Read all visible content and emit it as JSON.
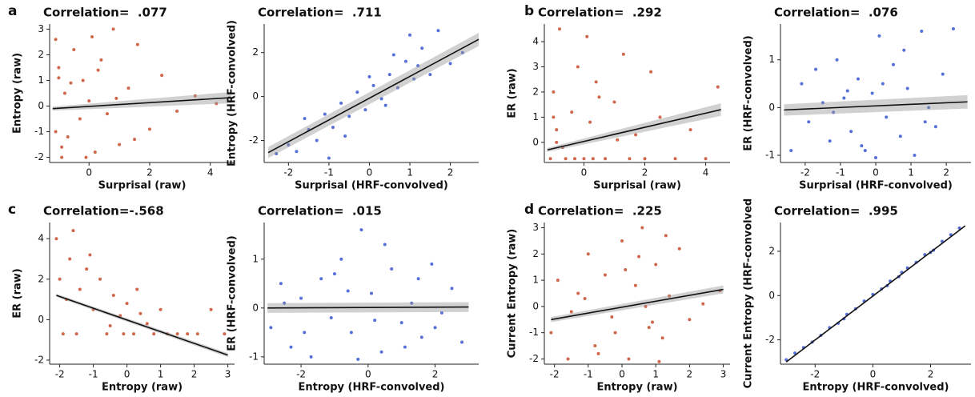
{
  "chart_data": [
    {
      "type": "scatter",
      "panel_label": "a",
      "title": "Correlation=  .077",
      "xlabel": "Surprisal (raw)",
      "ylabel": "Entropy (raw)",
      "color": "#d0674c",
      "xlim": [
        -1.3,
        4.8
      ],
      "ylim": [
        -2.2,
        3.2
      ],
      "xticks": [
        0,
        2,
        4
      ],
      "yticks": [
        -2,
        -1,
        0,
        1,
        2,
        3
      ],
      "x": [
        -1.1,
        -1.0,
        -0.9,
        -0.8,
        -0.7,
        -0.5,
        -0.3,
        -0.2,
        0,
        0.2,
        0.4,
        0.6,
        0.8,
        1.0,
        1.3,
        1.6,
        2.0,
        2.4,
        2.9,
        3.5,
        4.2,
        -1.1,
        -0.9,
        -0.6,
        -0.1,
        0.3,
        0.9,
        1.5,
        -1.0,
        0.1
      ],
      "values": [
        2.6,
        1.5,
        -2.0,
        0.5,
        -1.2,
        2.2,
        -0.5,
        1.0,
        0.2,
        -1.8,
        1.8,
        -0.3,
        3.0,
        -1.5,
        0.7,
        2.4,
        -0.9,
        1.2,
        -0.2,
        0.4,
        0.1,
        -1.0,
        -1.6,
        0.9,
        -2.0,
        1.4,
        0.3,
        -1.3,
        1.1,
        2.7
      ],
      "fit": {
        "x": [
          -1.2,
          4.7
        ],
        "y": [
          -0.1,
          0.33
        ],
        "ci": [
          0.08,
          0.22
        ]
      }
    },
    {
      "type": "scatter",
      "title": "Correlation=  .711",
      "xlabel": "Surprisal (HRF-convolved)",
      "ylabel": "Entropy (HRF-convolved)",
      "color": "#5670d8",
      "xlim": [
        -2.6,
        2.7
      ],
      "ylim": [
        -3.0,
        3.3
      ],
      "xticks": [
        -2,
        -1,
        0,
        1,
        2
      ],
      "yticks": [
        -2,
        0,
        2
      ],
      "x": [
        -2.3,
        -2.0,
        -1.8,
        -1.5,
        -1.3,
        -1.1,
        -0.9,
        -0.7,
        -0.5,
        -0.3,
        -0.1,
        0.1,
        0.3,
        0.5,
        0.7,
        0.9,
        1.1,
        1.3,
        1.5,
        1.7,
        2.0,
        2.3,
        -1.0,
        0.0,
        0.6,
        1.0,
        -0.6,
        0.4,
        1.2,
        -1.6
      ],
      "values": [
        -2.6,
        -2.2,
        -2.5,
        -1.5,
        -2.0,
        -0.8,
        -1.4,
        -0.3,
        -0.9,
        0.2,
        -0.6,
        0.5,
        -0.1,
        1.0,
        0.4,
        1.6,
        0.8,
        2.2,
        1.0,
        3.0,
        1.5,
        2.0,
        -2.8,
        0.9,
        1.9,
        2.8,
        -1.8,
        -0.4,
        1.4,
        -1.0
      ],
      "fit": {
        "x": [
          -2.5,
          2.7
        ],
        "y": [
          -2.55,
          2.6
        ],
        "ci": [
          0.25,
          0.3
        ]
      }
    },
    {
      "type": "scatter",
      "panel_label": "b",
      "title": "Correlation=  .292",
      "xlabel": "Surprisal (raw)",
      "ylabel": "ER (raw)",
      "color": "#d0674c",
      "xlim": [
        -1.3,
        4.8
      ],
      "ylim": [
        -0.8,
        4.7
      ],
      "xticks": [
        0,
        2,
        4
      ],
      "yticks": [
        0,
        1,
        2,
        3,
        4
      ],
      "x": [
        -1.1,
        -1.0,
        -0.9,
        -0.8,
        -0.6,
        -0.4,
        -0.2,
        0,
        0.2,
        0.4,
        0.7,
        1.0,
        1.3,
        1.7,
        2.0,
        2.5,
        3.0,
        3.5,
        4.0,
        4.4,
        -1.0,
        -0.7,
        -0.3,
        0.1,
        0.5,
        1.1,
        2.2,
        -0.9,
        0.3,
        1.5
      ],
      "values": [
        -0.65,
        2.0,
        0.5,
        4.5,
        -0.65,
        1.2,
        3.0,
        -0.65,
        0.8,
        2.4,
        -0.65,
        1.6,
        3.5,
        0.3,
        -0.65,
        1.0,
        -0.65,
        0.5,
        -0.65,
        2.2,
        1.0,
        -0.2,
        -0.65,
        4.2,
        1.8,
        0.1,
        2.8,
        0.0,
        -0.65,
        -0.65
      ],
      "fit": {
        "x": [
          -1.2,
          4.5
        ],
        "y": [
          -0.3,
          1.3
        ],
        "ci": [
          0.08,
          0.25
        ]
      }
    },
    {
      "type": "scatter",
      "title": "Correlation=  .076",
      "xlabel": "Surprisal (HRF-convolved)",
      "ylabel": "ER (HRF-convolved)",
      "color": "#5670d8",
      "xlim": [
        -2.7,
        2.7
      ],
      "ylim": [
        -1.15,
        1.75
      ],
      "xticks": [
        -2,
        -1,
        0,
        1,
        2
      ],
      "yticks": [
        -1,
        0,
        1
      ],
      "x": [
        -2.4,
        -2.1,
        -1.9,
        -1.7,
        -1.5,
        -1.3,
        -1.1,
        -0.9,
        -0.7,
        -0.5,
        -0.3,
        -0.1,
        0.1,
        0.3,
        0.5,
        0.7,
        0.9,
        1.1,
        1.3,
        1.5,
        1.7,
        1.9,
        2.2,
        -1.2,
        -0.4,
        0.2,
        0.8,
        1.4,
        -0.8,
        0.0
      ],
      "values": [
        -0.9,
        0.5,
        -0.3,
        0.8,
        0.1,
        -0.7,
        1.0,
        0.2,
        -0.5,
        0.6,
        -0.9,
        0.3,
        1.5,
        -0.2,
        0.9,
        -0.6,
        0.4,
        -1.0,
        1.6,
        0.0,
        -0.4,
        0.7,
        1.65,
        -0.1,
        -0.8,
        0.5,
        1.2,
        -0.3,
        0.35,
        -1.05
      ],
      "fit": {
        "x": [
          -2.6,
          2.6
        ],
        "y": [
          -0.05,
          0.12
        ],
        "ci": [
          0.12,
          0.14
        ]
      }
    },
    {
      "type": "scatter",
      "panel_label": "c",
      "title": "Correlation=-.568",
      "xlabel": "Entropy (raw)",
      "ylabel": "ER (raw)",
      "color": "#d0674c",
      "xlim": [
        -2.3,
        3.2
      ],
      "ylim": [
        -2.2,
        4.8
      ],
      "xticks": [
        -2,
        -1,
        0,
        1,
        2,
        3
      ],
      "yticks": [
        -2,
        0,
        2,
        4
      ],
      "x": [
        -2.1,
        -2.0,
        -1.9,
        -1.7,
        -1.6,
        -1.4,
        -1.2,
        -1.0,
        -0.8,
        -0.6,
        -0.4,
        -0.2,
        0,
        0.2,
        0.4,
        0.6,
        0.8,
        1.0,
        1.2,
        1.5,
        1.8,
        2.1,
        2.5,
        2.9,
        -1.8,
        -1.1,
        -0.5,
        0.3,
        -1.5,
        -0.1
      ],
      "values": [
        4.0,
        2.0,
        -0.7,
        3.0,
        4.4,
        1.5,
        2.5,
        0.5,
        2.0,
        -0.7,
        1.2,
        0.2,
        0.8,
        -0.7,
        0.3,
        -0.2,
        -0.7,
        0.5,
        -0.7,
        -0.7,
        -0.7,
        -0.7,
        0.5,
        -0.7,
        1.0,
        3.2,
        -0.3,
        1.5,
        -0.7,
        -0.7
      ],
      "fit": {
        "x": [
          -2.1,
          3.0
        ],
        "y": [
          1.2,
          -1.75
        ],
        "ci": [
          0.08,
          0.1
        ]
      }
    },
    {
      "type": "scatter",
      "title": "Correlation=  .015",
      "xlabel": "Entropy (HRF-convolved)",
      "ylabel": "ER (HRF-convolved)",
      "color": "#5670d8",
      "xlim": [
        -3.1,
        3.3
      ],
      "ylim": [
        -1.15,
        1.75
      ],
      "xticks": [
        -2,
        0,
        2
      ],
      "yticks": [
        -1,
        0,
        1
      ],
      "x": [
        -2.9,
        -2.6,
        -2.3,
        -2.0,
        -1.7,
        -1.4,
        -1.1,
        -0.8,
        -0.5,
        -0.2,
        0.1,
        0.4,
        0.7,
        1.0,
        1.3,
        1.6,
        1.9,
        2.2,
        2.5,
        2.8,
        -1.9,
        -1.0,
        -0.3,
        0.5,
        1.1,
        -2.5,
        -0.6,
        0.2,
        1.5,
        2.0
      ],
      "values": [
        -0.4,
        0.5,
        -0.8,
        0.2,
        -1.0,
        0.6,
        -0.2,
        1.0,
        -0.5,
        1.6,
        0.3,
        -0.9,
        0.8,
        -0.3,
        0.1,
        -0.6,
        0.9,
        -0.1,
        0.4,
        -0.7,
        -0.5,
        0.7,
        -1.05,
        1.3,
        -0.8,
        0.1,
        0.35,
        -0.25,
        0.6,
        -0.4
      ],
      "fit": {
        "x": [
          -3.0,
          3.0
        ],
        "y": [
          0.0,
          0.02
        ],
        "ci": [
          0.1,
          0.1
        ]
      }
    },
    {
      "type": "scatter",
      "panel_label": "d",
      "title": "Correlation=  .225",
      "xlabel": "Entropy (raw)",
      "ylabel": "Current Entropy (raw)",
      "color": "#d0674c",
      "xlim": [
        -2.3,
        3.2
      ],
      "ylim": [
        -2.2,
        3.2
      ],
      "xticks": [
        -2,
        -1,
        0,
        1,
        2,
        3
      ],
      "yticks": [
        -2,
        -1,
        0,
        1,
        2,
        3
      ],
      "x": [
        -2.1,
        -1.9,
        -1.6,
        -1.3,
        -1.0,
        -0.8,
        -0.5,
        -0.3,
        0,
        0.2,
        0.4,
        0.6,
        0.8,
        1.0,
        1.2,
        1.4,
        1.7,
        2.0,
        2.4,
        2.9,
        -1.5,
        -0.7,
        0.1,
        0.7,
        1.3,
        -0.2,
        0.5,
        1.1,
        -1.1,
        0.9
      ],
      "values": [
        -1.0,
        1.0,
        -2.0,
        0.5,
        2.0,
        -1.5,
        1.2,
        -0.4,
        2.5,
        -2.0,
        0.8,
        3.0,
        -0.8,
        1.6,
        -1.2,
        0.4,
        2.2,
        -0.5,
        0.1,
        0.6,
        -0.2,
        -1.8,
        1.4,
        0.0,
        2.7,
        -1.0,
        1.9,
        -2.1,
        0.3,
        -0.6
      ],
      "fit": {
        "x": [
          -2.1,
          3.0
        ],
        "y": [
          -0.5,
          0.65
        ],
        "ci": [
          0.1,
          0.15
        ]
      }
    },
    {
      "type": "scatter",
      "title": "Correlation=  .995",
      "xlabel": "Entropy (HRF-convolved)",
      "ylabel": "Current Entropy (HRF-convolved",
      "color": "#5670d8",
      "xlim": [
        -3.2,
        3.4
      ],
      "ylim": [
        -3.1,
        3.3
      ],
      "xticks": [
        -2,
        0,
        2
      ],
      "yticks": [
        -2,
        0,
        2
      ],
      "x": [
        -3.0,
        -2.7,
        -2.4,
        -2.1,
        -1.8,
        -1.5,
        -1.2,
        -0.9,
        -0.6,
        -0.3,
        0,
        0.3,
        0.6,
        0.9,
        1.2,
        1.5,
        1.8,
        2.1,
        2.4,
        2.7,
        3.0,
        -1.0,
        0.5,
        1.0,
        2.0
      ],
      "values": [
        -2.9,
        -2.6,
        -2.35,
        -2.1,
        -1.8,
        -1.45,
        -1.25,
        -0.85,
        -0.6,
        -0.25,
        0.05,
        0.3,
        0.65,
        0.85,
        1.25,
        1.5,
        1.85,
        2.05,
        2.45,
        2.75,
        3.05,
        -1.05,
        0.45,
        1.05,
        1.95
      ],
      "fit": {
        "x": [
          -3.0,
          3.2
        ],
        "y": [
          -3.0,
          3.15
        ],
        "ci": [
          0.03,
          0.03
        ]
      }
    }
  ]
}
